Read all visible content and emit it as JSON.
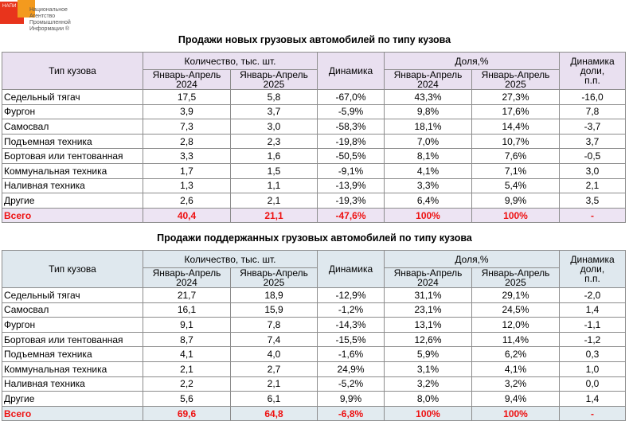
{
  "logo": {
    "abbr": "НАПИ",
    "name_lines": [
      "Национальное",
      "Агентство",
      "Промышленной",
      "Информации ®"
    ]
  },
  "table1": {
    "title": "Продажи новых грузовых автомобилей по типу кузова",
    "headers": {
      "type": "Тип кузова",
      "qty": "Количество, тыс. шт.",
      "period1": [
        "Январь-Апрель",
        "2024"
      ],
      "period2": [
        "Январь-Апрель",
        "2025"
      ],
      "dynamics": "Динамика",
      "share": "Доля,%",
      "share_dyn": [
        "Динамика",
        "доли,",
        "п.п."
      ]
    },
    "rows": [
      [
        "Седельный тягач",
        "17,5",
        "5,8",
        "-67,0%",
        "43,3%",
        "27,3%",
        "-16,0"
      ],
      [
        "Фургон",
        "3,9",
        "3,7",
        "-5,9%",
        "9,8%",
        "17,6%",
        "7,8"
      ],
      [
        "Самосвал",
        "7,3",
        "3,0",
        "-58,3%",
        "18,1%",
        "14,4%",
        "-3,7"
      ],
      [
        "Подъемная техника",
        "2,8",
        "2,3",
        "-19,8%",
        "7,0%",
        "10,7%",
        "3,7"
      ],
      [
        "Бортовая или тентованная",
        "3,3",
        "1,6",
        "-50,5%",
        "8,1%",
        "7,6%",
        "-0,5"
      ],
      [
        "Коммунальная техника",
        "1,7",
        "1,5",
        "-9,1%",
        "4,1%",
        "7,1%",
        "3,0"
      ],
      [
        "Наливная техника",
        "1,3",
        "1,1",
        "-13,9%",
        "3,3%",
        "5,4%",
        "2,1"
      ],
      [
        "Другие",
        "2,6",
        "2,1",
        "-19,3%",
        "6,4%",
        "9,9%",
        "3,5"
      ]
    ],
    "total": [
      "Всего",
      "40,4",
      "21,1",
      "-47,6%",
      "100%",
      "100%",
      "-"
    ]
  },
  "table2": {
    "title": "Продажи поддержанных грузовых автомобилей по типу кузова",
    "headers": {
      "type": "Тип кузова",
      "qty": "Количество, тыс. шт.",
      "period1": [
        "Январь-Апрель",
        "2024"
      ],
      "period2": [
        "Январь-Апрель",
        "2025"
      ],
      "dynamics": "Динамика",
      "share": "Доля,%",
      "share_dyn": [
        "Динамика",
        "доли,",
        "п.п."
      ]
    },
    "rows": [
      [
        "Седельный тягач",
        "21,7",
        "18,9",
        "-12,9%",
        "31,1%",
        "29,1%",
        "-2,0"
      ],
      [
        "Самосвал",
        "16,1",
        "15,9",
        "-1,2%",
        "23,1%",
        "24,5%",
        "1,4"
      ],
      [
        "Фургон",
        "9,1",
        "7,8",
        "-14,3%",
        "13,1%",
        "12,0%",
        "-1,1"
      ],
      [
        "Бортовая или тентованная",
        "8,7",
        "7,4",
        "-15,5%",
        "12,6%",
        "11,4%",
        "-1,2"
      ],
      [
        "Подъемная техника",
        "4,1",
        "4,0",
        "-1,6%",
        "5,9%",
        "6,2%",
        "0,3"
      ],
      [
        "Коммунальная техника",
        "2,1",
        "2,7",
        "24,9%",
        "3,1%",
        "4,1%",
        "1,0"
      ],
      [
        "Наливная техника",
        "2,2",
        "2,1",
        "-5,2%",
        "3,2%",
        "3,2%",
        "0,0"
      ],
      [
        "Другие",
        "5,6",
        "6,1",
        "9,9%",
        "8,0%",
        "9,4%",
        "1,4"
      ]
    ],
    "total": [
      "Всего",
      "69,6",
      "64,8",
      "-6,8%",
      "100%",
      "100%",
      "-"
    ]
  }
}
